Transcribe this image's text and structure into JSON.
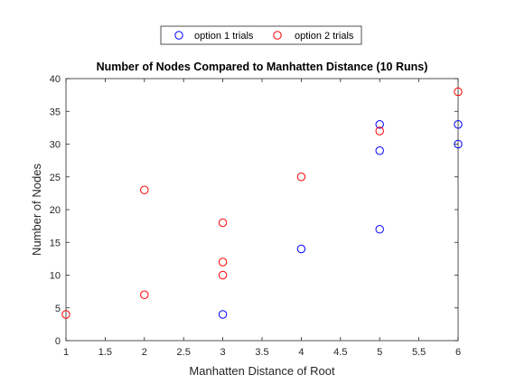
{
  "chart_data": {
    "type": "scatter",
    "title": "Number of Nodes Compared to Manhatten Distance (10 Runs)",
    "xlabel": "Manhatten Distance of Root",
    "ylabel": "Number of Nodes",
    "xlim": [
      1,
      6
    ],
    "ylim": [
      0,
      40
    ],
    "xticks": [
      1,
      1.5,
      2,
      2.5,
      3,
      3.5,
      4,
      4.5,
      5,
      5.5,
      6
    ],
    "yticks": [
      0,
      5,
      10,
      15,
      20,
      25,
      30,
      35,
      40
    ],
    "grid": false,
    "legend_position": "top-center",
    "series": [
      {
        "name": "option 1 trials",
        "color": "#0000ff",
        "marker": "circle-open",
        "points": [
          [
            3,
            4
          ],
          [
            4,
            14
          ],
          [
            5,
            17
          ],
          [
            5,
            29
          ],
          [
            5,
            33
          ],
          [
            6,
            30
          ],
          [
            6,
            33
          ]
        ]
      },
      {
        "name": "option 2 trials",
        "color": "#ff0000",
        "marker": "circle-open",
        "points": [
          [
            1,
            4
          ],
          [
            2,
            7
          ],
          [
            2,
            23
          ],
          [
            3,
            10
          ],
          [
            3,
            12
          ],
          [
            3,
            18
          ],
          [
            4,
            25
          ],
          [
            5,
            32
          ],
          [
            6,
            38
          ]
        ]
      }
    ]
  }
}
